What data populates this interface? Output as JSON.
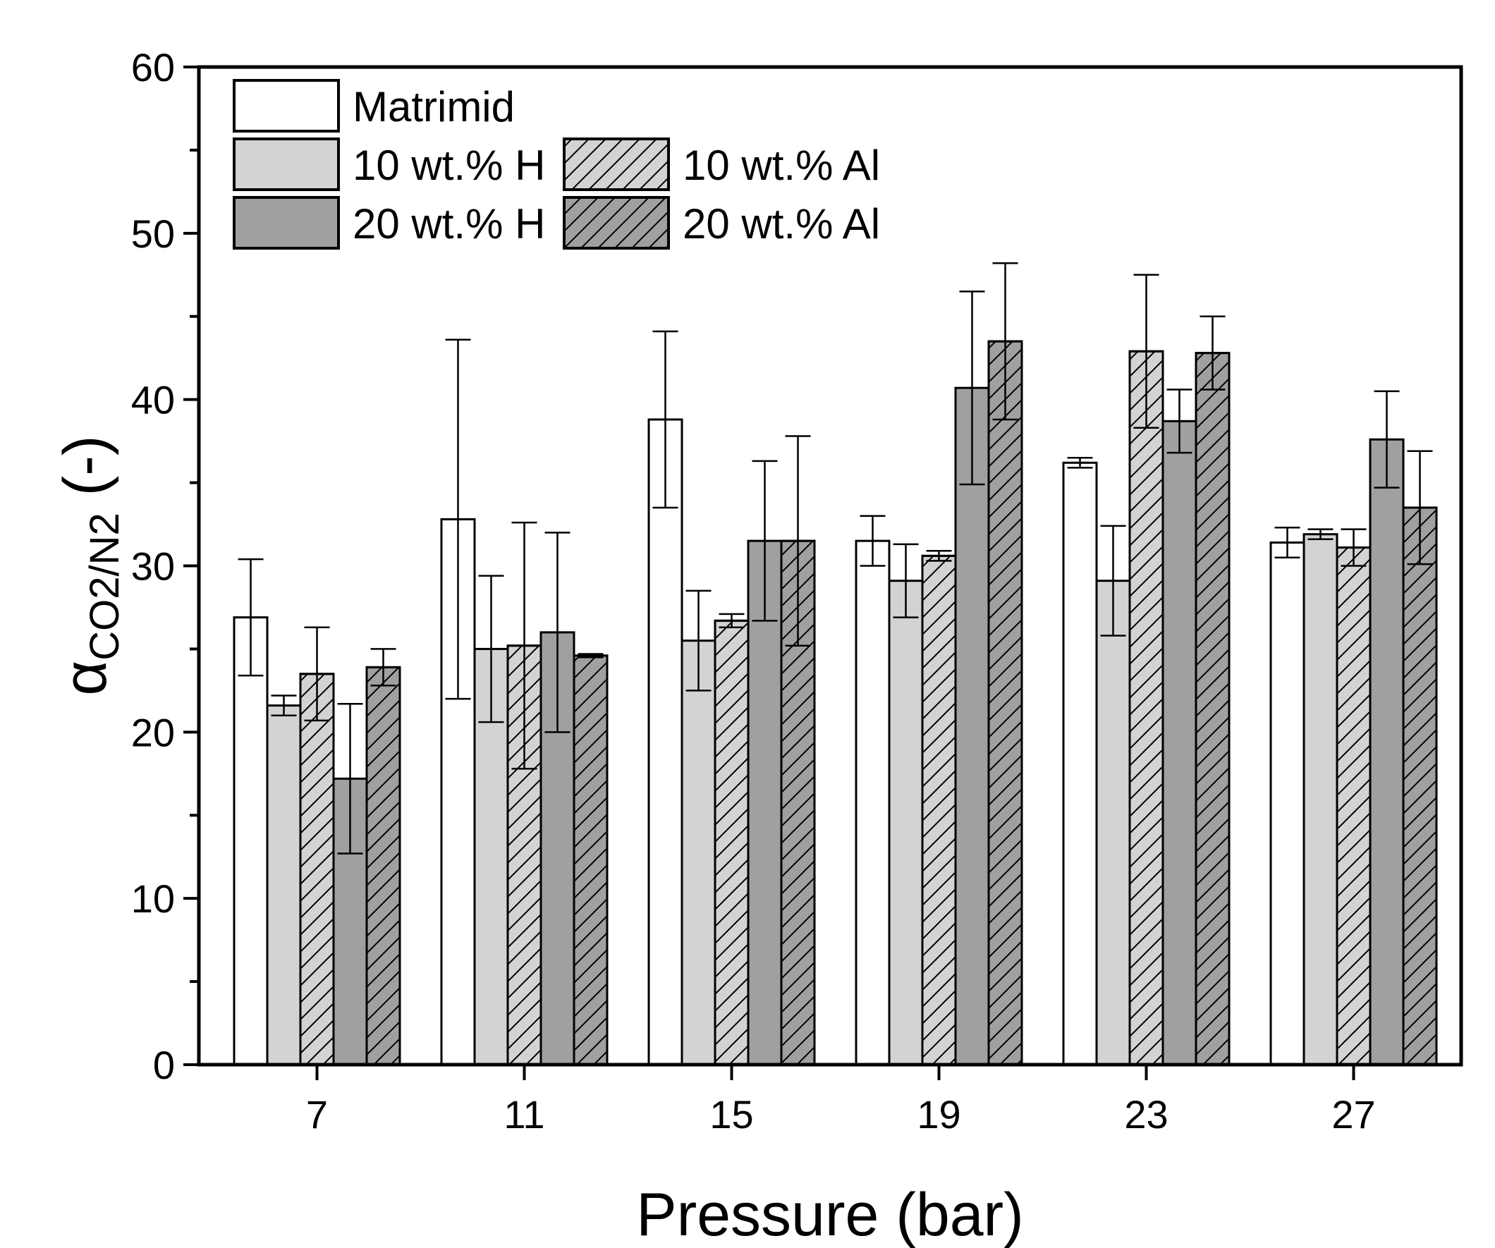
{
  "chart_data": {
    "type": "bar",
    "title": "",
    "xlabel": "Pressure (bar)",
    "ylabel": {
      "symbol": "α",
      "subscript": "CO2/N2",
      "suffix": " (-)"
    },
    "categories": [
      "7",
      "11",
      "15",
      "19",
      "23",
      "27"
    ],
    "ylim": [
      0,
      60
    ],
    "yticks": [
      "0",
      "10",
      "20",
      "30",
      "40",
      "50",
      "60"
    ],
    "grid": false,
    "legend_position": "top-left",
    "series": [
      {
        "name": "Matrimid",
        "fill": "#ffffff",
        "hatch": false,
        "values": [
          26.9,
          32.8,
          38.8,
          31.5,
          36.2,
          31.4
        ],
        "errors": [
          3.5,
          10.8,
          5.3,
          1.5,
          0.3,
          0.9
        ]
      },
      {
        "name": "10 wt.% H",
        "fill": "#d3d3d3",
        "hatch": false,
        "values": [
          21.6,
          25.0,
          25.5,
          29.1,
          29.1,
          31.9
        ],
        "errors": [
          0.6,
          4.4,
          3.0,
          2.2,
          3.3,
          0.3
        ]
      },
      {
        "name": "10 wt.% Al",
        "fill": "#d3d3d3",
        "hatch": true,
        "values": [
          23.5,
          25.2,
          26.7,
          30.6,
          42.9,
          31.1
        ],
        "errors": [
          2.8,
          7.4,
          0.4,
          0.3,
          4.6,
          1.1
        ]
      },
      {
        "name": "20 wt.% H",
        "fill": "#a0a0a0",
        "hatch": false,
        "values": [
          17.2,
          26.0,
          31.5,
          40.7,
          38.7,
          37.6
        ],
        "errors": [
          4.5,
          6.0,
          4.8,
          5.8,
          1.9,
          2.9
        ]
      },
      {
        "name": "20 wt.% Al",
        "fill": "#a0a0a0",
        "hatch": true,
        "values": [
          23.9,
          24.6,
          31.5,
          43.5,
          42.8,
          33.5
        ],
        "errors": [
          1.1,
          0.1,
          6.3,
          4.7,
          2.2,
          3.4
        ]
      }
    ]
  }
}
